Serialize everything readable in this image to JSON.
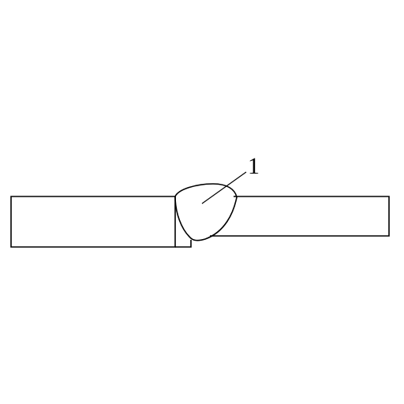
{
  "callouts": [
    {
      "label": "1",
      "target": "weld-bead"
    }
  ]
}
